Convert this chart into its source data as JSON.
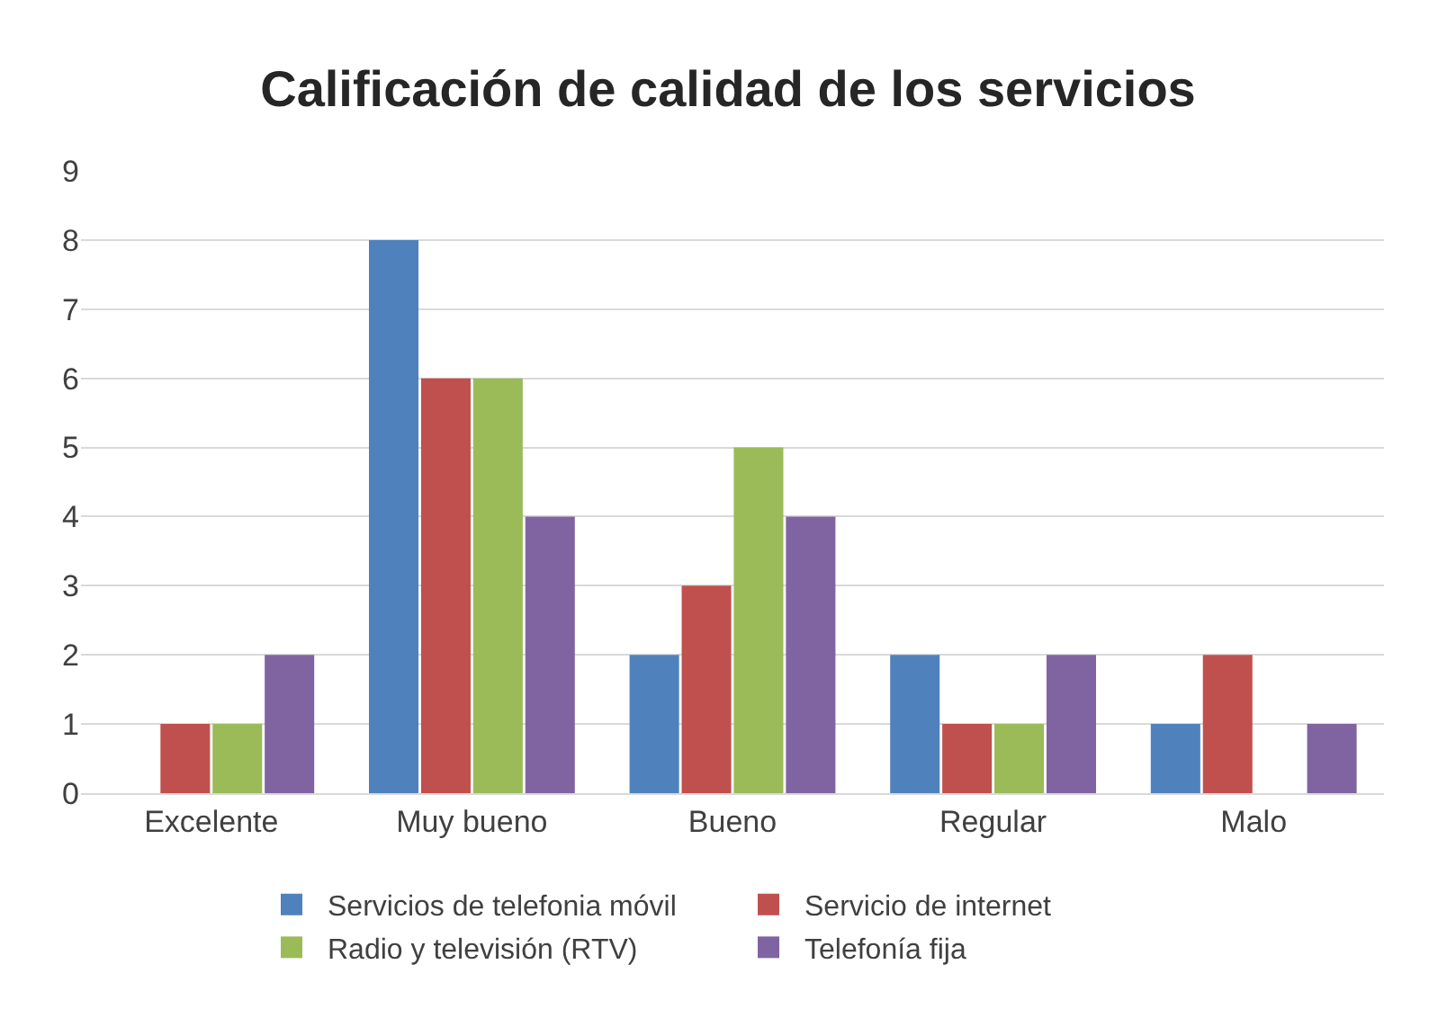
{
  "chart_data": {
    "type": "bar",
    "title": "Calificación de calidad de los servicios",
    "categories": [
      "Excelente",
      "Muy bueno",
      "Bueno",
      "Regular",
      "Malo"
    ],
    "series": [
      {
        "name": "Servicios de telefonia móvil",
        "color": "#4f81bd",
        "values": [
          0,
          8,
          2,
          2,
          1
        ]
      },
      {
        "name": "Servicio de internet",
        "color": "#c0504d",
        "values": [
          1,
          6,
          3,
          1,
          2
        ]
      },
      {
        "name": "Radio y televisión (RTV)",
        "color": "#9bbb59",
        "values": [
          1,
          6,
          5,
          1,
          0
        ]
      },
      {
        "name": "Telefonía fija",
        "color": "#8064a2",
        "values": [
          2,
          4,
          4,
          2,
          1
        ]
      }
    ],
    "ylim": [
      0,
      9
    ],
    "yticks": [
      0,
      1,
      2,
      3,
      4,
      5,
      6,
      7,
      8,
      9
    ],
    "grid": "y",
    "legend": "bottom"
  }
}
